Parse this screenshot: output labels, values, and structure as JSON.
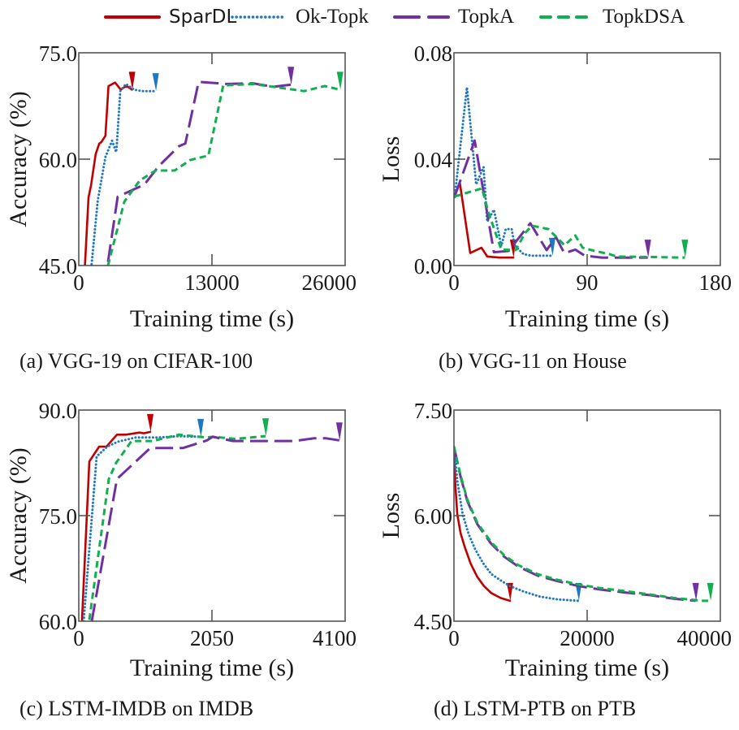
{
  "legend": [
    {
      "id": "spardl",
      "label": "SparDL",
      "color": "#c00000",
      "style": "solid"
    },
    {
      "id": "oktopk",
      "label": "Ok-Topk",
      "color": "#1f77c4",
      "style": "dotted"
    },
    {
      "id": "topka",
      "label": "TopkA",
      "color": "#7030a0",
      "style": "longdash"
    },
    {
      "id": "topkdsa",
      "label": "TopkDSA",
      "color": "#10b050",
      "style": "dashed"
    }
  ],
  "chart_data": [
    {
      "id": "a",
      "type": "line",
      "caption": "(a) VGG-19 on CIFAR-100",
      "title": "",
      "xlabel": "Training time (s)",
      "ylabel": "Accuracy (%)",
      "xlim": [
        0,
        26000
      ],
      "ylim": [
        45,
        75
      ],
      "xticks": [
        0,
        13000,
        26000
      ],
      "xtick_labels": [
        "0",
        "13000",
        "26000"
      ],
      "yticks": [
        45,
        60,
        75
      ],
      "ytick_labels": [
        "45.0",
        "60.0",
        "75.0"
      ],
      "grid": false,
      "end_markers": true,
      "series": [
        {
          "name": "SparDL",
          "x": [
            600,
            950,
            1200,
            1650,
            2000,
            2200,
            2600,
            2900,
            3550,
            4100,
            4500,
            4800,
            5200
          ],
          "y": [
            45.0,
            54.6,
            56.3,
            60.7,
            62.2,
            62.4,
            63.3,
            70.3,
            70.8,
            69.8,
            70.2,
            70.2,
            69.8
          ]
        },
        {
          "name": "Ok-Topk",
          "x": [
            1250,
            1850,
            2600,
            3250,
            3650,
            3700,
            4050,
            4600,
            5400,
            6200,
            7500
          ],
          "y": [
            45.2,
            54.1,
            60.3,
            62.6,
            61.0,
            61.8,
            69.6,
            70.6,
            69.8,
            69.6,
            69.6
          ]
        },
        {
          "name": "TopkA",
          "x": [
            2850,
            3800,
            6400,
            7800,
            9750,
            10400,
            11700,
            14500,
            17000,
            19000,
            20700
          ],
          "y": [
            45.5,
            54.7,
            56.4,
            59.0,
            61.8,
            62.2,
            70.9,
            70.6,
            70.7,
            70.2,
            70.5
          ]
        },
        {
          "name": "TopkDSA",
          "x": [
            2850,
            4450,
            5950,
            7500,
            9350,
            10900,
            12650,
            14100,
            17000,
            20000,
            22000,
            24000,
            25500
          ],
          "y": [
            45.0,
            54.0,
            57.0,
            58.4,
            58.4,
            59.9,
            60.5,
            70.4,
            70.6,
            70.0,
            69.6,
            70.3,
            69.8
          ]
        }
      ]
    },
    {
      "id": "b",
      "type": "line",
      "caption": "(b) VGG-11 on House",
      "title": "",
      "xlabel": "Training time (s)",
      "ylabel": "Loss",
      "xlim": [
        0,
        180
      ],
      "ylim": [
        0,
        0.08
      ],
      "xticks": [
        0,
        90,
        180
      ],
      "xtick_labels": [
        "0",
        "90",
        "180"
      ],
      "yticks": [
        0,
        0.04,
        0.08
      ],
      "ytick_labels": [
        "0.00",
        "0.04",
        "0.08"
      ],
      "grid": false,
      "end_markers": true,
      "series": [
        {
          "name": "SparDL",
          "x": [
            0,
            4,
            11,
            18.6,
            22.5,
            30.7,
            40
          ],
          "y": [
            0.026,
            0.031,
            0.0047,
            0.0067,
            0.0034,
            0.003,
            0.003
          ]
        },
        {
          "name": "Ok-Topk",
          "x": [
            0.5,
            8.8,
            15,
            20,
            22.5,
            27,
            32,
            35,
            39,
            41,
            47,
            52,
            66.4
          ],
          "y": [
            0.0257,
            0.067,
            0.0305,
            0.037,
            0.0165,
            0.021,
            0.0073,
            0.0137,
            0.0137,
            0.0075,
            0.0043,
            0.0037,
            0.0037
          ]
        },
        {
          "name": "TopkA",
          "x": [
            0.5,
            14,
            27,
            37,
            51.6,
            62.6,
            69,
            74.6,
            82,
            88.4,
            100,
            131
          ],
          "y": [
            0.026,
            0.047,
            0.005,
            0.0055,
            0.0159,
            0.0058,
            0.0107,
            0.0046,
            0.006,
            0.0037,
            0.003,
            0.003
          ]
        },
        {
          "name": "TopkDSA",
          "x": [
            0.5,
            19,
            23,
            32,
            41.7,
            48,
            52.7,
            63.7,
            72,
            74.6,
            82,
            87,
            95,
            105,
            110,
            156
          ],
          "y": [
            0.026,
            0.029,
            0.0205,
            0.006,
            0.0058,
            0.0122,
            0.015,
            0.0137,
            0.0092,
            0.0076,
            0.0113,
            0.0067,
            0.0055,
            0.0043,
            0.0034,
            0.003
          ]
        }
      ]
    },
    {
      "id": "c",
      "type": "line",
      "caption": "(c) LSTM-IMDB on IMDB",
      "title": "",
      "xlabel": "Training time (s)",
      "ylabel": "Accuracy (%)",
      "xlim": [
        0,
        4100
      ],
      "ylim": [
        60,
        90
      ],
      "xticks": [
        0,
        2050,
        4100
      ],
      "xtick_labels": [
        "0",
        "2050",
        "4100"
      ],
      "yticks": [
        60,
        75,
        90
      ],
      "ytick_labels": [
        "60.0",
        "75.0",
        "90.0"
      ],
      "grid": false,
      "end_markers": true,
      "series": [
        {
          "name": "SparDL",
          "x": [
            50,
            162,
            312,
            425,
            588,
            725,
            938,
            1000,
            1100
          ],
          "y": [
            60.2,
            82.7,
            84.8,
            84.8,
            86.5,
            86.5,
            86.8,
            86.7,
            86.9
          ]
        },
        {
          "name": "Ok-Topk",
          "x": [
            75,
            275,
            438,
            600,
            875,
            1225,
            1550,
            1875
          ],
          "y": [
            60.0,
            83.4,
            84.8,
            85.5,
            86.1,
            86.1,
            86.3,
            86.2
          ]
        },
        {
          "name": "TopkDSA",
          "x": [
            162,
            462,
            575,
            812,
            1138,
            1538,
            1975,
            2060,
            2410,
            2875
          ],
          "y": [
            60.2,
            80.2,
            82.5,
            85.6,
            85.6,
            86.5,
            86.1,
            86.2,
            85.9,
            86.3
          ]
        },
        {
          "name": "TopkA",
          "x": [
            200,
            588,
            1100,
            1600,
            1975,
            2060,
            2375,
            3325,
            3625,
            3800,
            4010
          ],
          "y": [
            60.0,
            80.2,
            84.6,
            84.6,
            85.7,
            86.2,
            85.6,
            85.6,
            86.0,
            86.0,
            85.7
          ]
        }
      ]
    },
    {
      "id": "d",
      "type": "line",
      "caption": "(d) LSTM-PTB on PTB",
      "title": "",
      "xlabel": "Training time (s)",
      "ylabel": "Loss",
      "xlim": [
        0,
        40000
      ],
      "ylim": [
        4.5,
        7.5
      ],
      "xticks": [
        0,
        20000,
        40000
      ],
      "xtick_labels": [
        "0",
        "20000",
        "40000"
      ],
      "yticks": [
        4.5,
        6.0,
        7.5
      ],
      "ytick_labels": [
        "4.50",
        "6.00",
        "7.50"
      ],
      "grid": false,
      "end_markers": true,
      "series": [
        {
          "name": "SparDL",
          "x": [
            0,
            200,
            500,
            1000,
            1600,
            2500,
            3500,
            4500,
            5600,
            7000,
            8400
          ],
          "y": [
            6.98,
            6.45,
            6.02,
            5.75,
            5.56,
            5.32,
            5.13,
            5.0,
            4.9,
            4.83,
            4.79
          ]
        },
        {
          "name": "Ok-Topk",
          "x": [
            0,
            500,
            1300,
            2200,
            3200,
            4400,
            5600,
            7000,
            8400,
            10500,
            12900,
            15500,
            18700
          ],
          "y": [
            6.98,
            6.5,
            6.02,
            5.74,
            5.52,
            5.32,
            5.17,
            5.08,
            5.0,
            4.92,
            4.85,
            4.81,
            4.79
          ]
        },
        {
          "name": "TopkA",
          "x": [
            0,
            1000,
            2000,
            3500,
            5600,
            7500,
            9600,
            12500,
            15500,
            18700,
            22000,
            25500,
            29400,
            33000,
            36300
          ],
          "y": [
            6.98,
            6.55,
            6.21,
            5.88,
            5.6,
            5.42,
            5.28,
            5.15,
            5.07,
            5.0,
            4.95,
            4.91,
            4.87,
            4.82,
            4.79
          ]
        },
        {
          "name": "TopkDSA",
          "x": [
            0,
            1000,
            2000,
            3500,
            5600,
            7500,
            9600,
            12500,
            15500,
            18700,
            22000,
            25500,
            29400,
            33000,
            36300,
            37000,
            38500
          ],
          "y": [
            6.98,
            6.57,
            6.23,
            5.9,
            5.62,
            5.44,
            5.3,
            5.17,
            5.09,
            5.02,
            4.97,
            4.93,
            4.88,
            4.83,
            4.8,
            4.79,
            4.79
          ]
        }
      ]
    }
  ]
}
